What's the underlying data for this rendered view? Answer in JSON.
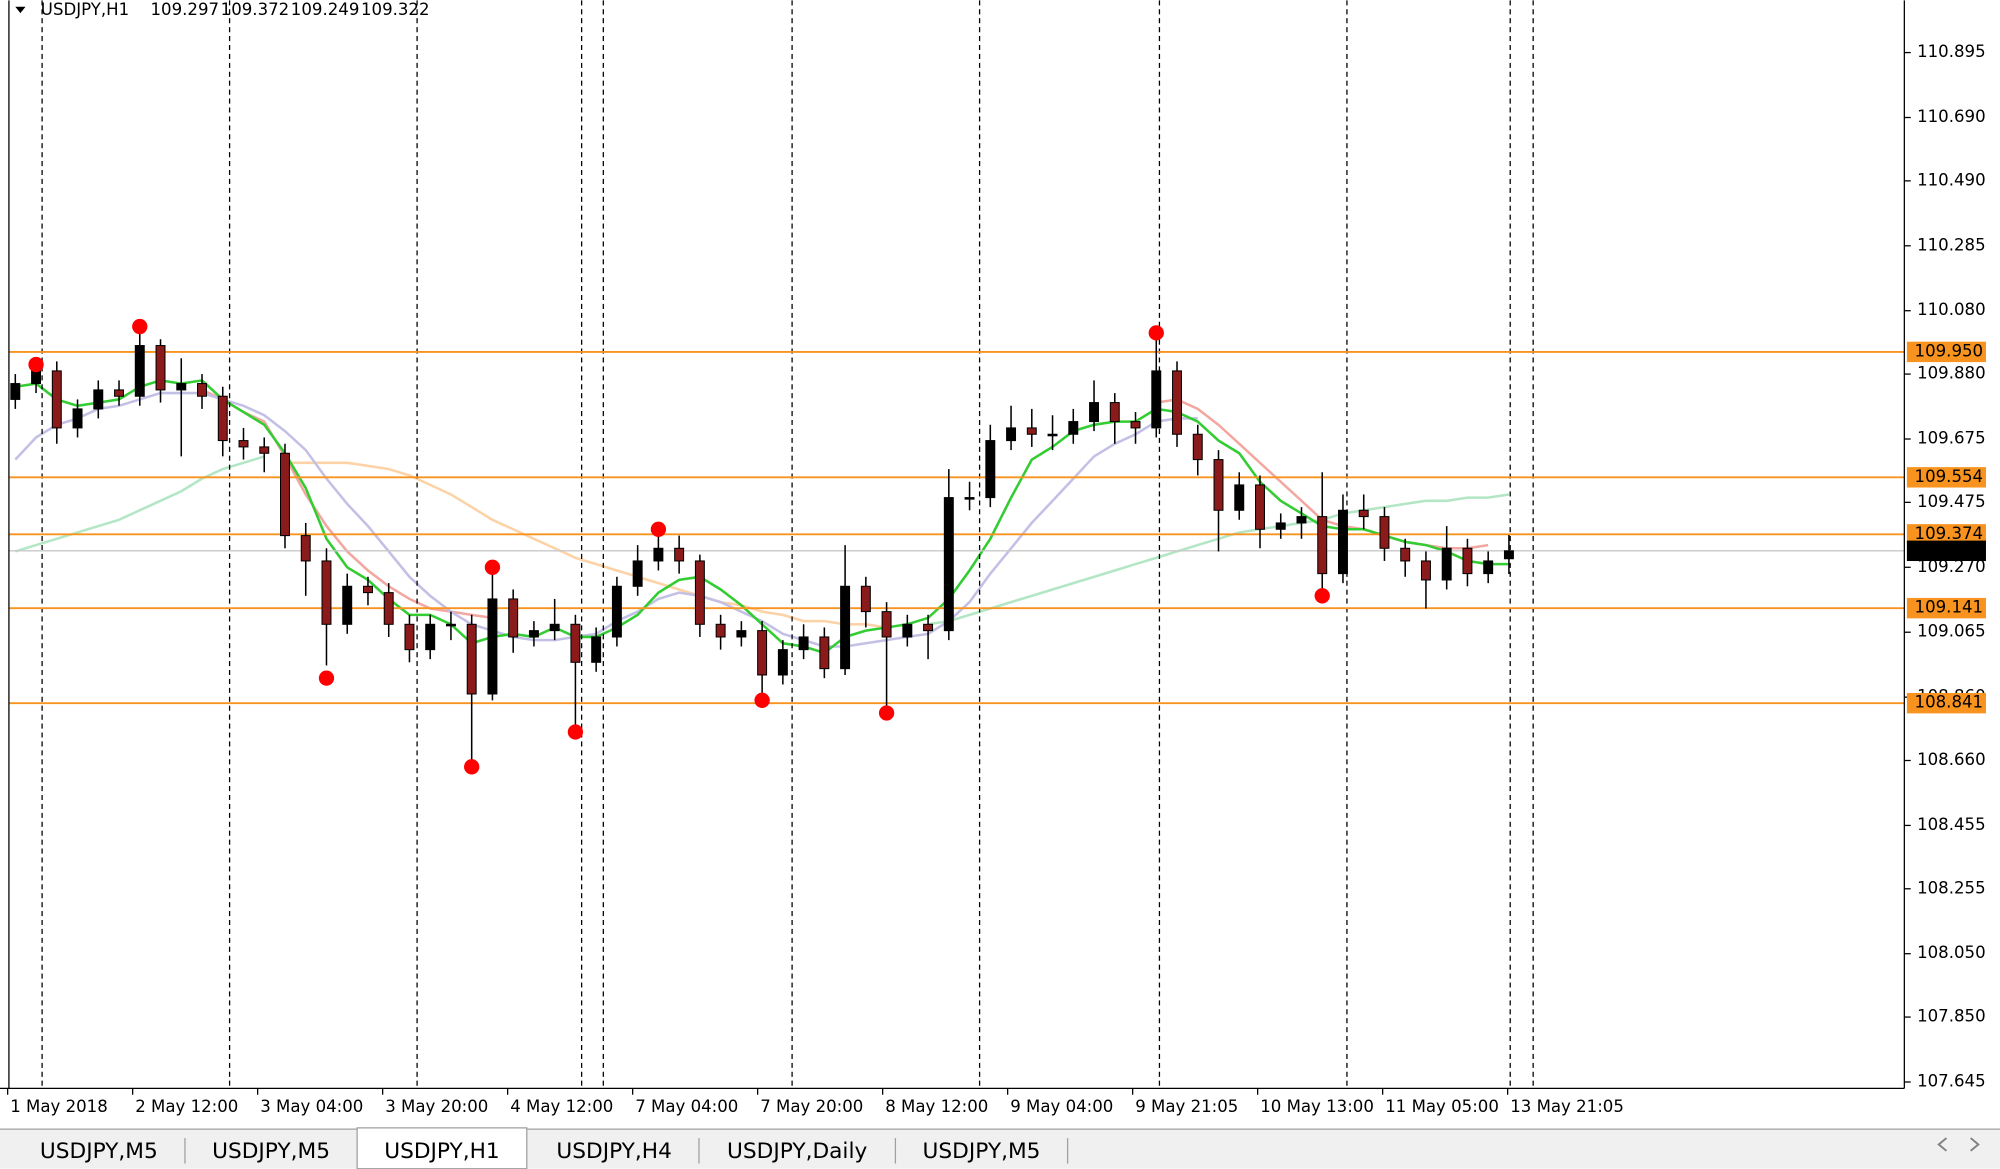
{
  "chart_data": {
    "type": "candlestick",
    "symbol": "USDJPY,H1",
    "bull_color": "#000000",
    "bear_color": "#8b1a1a",
    "candles": [
      [
        109.8,
        109.88,
        109.77,
        109.85
      ],
      [
        109.85,
        109.92,
        109.82,
        109.89
      ],
      [
        109.89,
        109.92,
        109.66,
        109.71
      ],
      [
        109.71,
        109.8,
        109.68,
        109.77
      ],
      [
        109.77,
        109.86,
        109.74,
        109.83
      ],
      [
        109.83,
        109.86,
        109.78,
        109.81
      ],
      [
        109.81,
        110.01,
        109.78,
        109.97
      ],
      [
        109.97,
        109.99,
        109.79,
        109.83
      ],
      [
        109.83,
        109.93,
        109.62,
        109.85
      ],
      [
        109.85,
        109.88,
        109.77,
        109.81
      ],
      [
        109.81,
        109.84,
        109.62,
        109.67
      ],
      [
        109.67,
        109.71,
        109.61,
        109.65
      ],
      [
        109.65,
        109.68,
        109.57,
        109.63
      ],
      [
        109.63,
        109.66,
        109.33,
        109.37
      ],
      [
        109.37,
        109.41,
        109.18,
        109.29
      ],
      [
        109.29,
        109.33,
        108.96,
        109.09
      ],
      [
        109.09,
        109.25,
        109.06,
        109.21
      ],
      [
        109.21,
        109.24,
        109.15,
        109.19
      ],
      [
        109.19,
        109.22,
        109.05,
        109.09
      ],
      [
        109.09,
        109.12,
        108.97,
        109.01
      ],
      [
        109.01,
        109.12,
        108.98,
        109.09
      ],
      [
        109.09,
        109.13,
        109.04,
        109.09
      ],
      [
        109.09,
        109.12,
        108.66,
        108.87
      ],
      [
        108.87,
        109.26,
        108.85,
        109.17
      ],
      [
        109.17,
        109.2,
        109.0,
        109.05
      ],
      [
        109.05,
        109.1,
        109.02,
        109.07
      ],
      [
        109.07,
        109.17,
        109.04,
        109.09
      ],
      [
        109.09,
        109.12,
        108.75,
        108.97
      ],
      [
        108.97,
        109.08,
        108.94,
        109.05
      ],
      [
        109.05,
        109.24,
        109.02,
        109.21
      ],
      [
        109.21,
        109.34,
        109.18,
        109.29
      ],
      [
        109.29,
        109.39,
        109.26,
        109.33
      ],
      [
        109.33,
        109.37,
        109.25,
        109.29
      ],
      [
        109.29,
        109.31,
        109.05,
        109.09
      ],
      [
        109.09,
        109.12,
        109.01,
        109.05
      ],
      [
        109.05,
        109.1,
        109.02,
        109.07
      ],
      [
        109.07,
        109.1,
        108.84,
        108.93
      ],
      [
        108.93,
        109.04,
        108.9,
        109.01
      ],
      [
        109.01,
        109.09,
        108.98,
        109.05
      ],
      [
        109.05,
        109.08,
        108.92,
        108.95
      ],
      [
        108.95,
        109.34,
        108.93,
        109.21
      ],
      [
        109.21,
        109.24,
        109.08,
        109.13
      ],
      [
        109.13,
        109.16,
        108.82,
        109.05
      ],
      [
        109.05,
        109.12,
        109.02,
        109.09
      ],
      [
        109.09,
        109.12,
        108.98,
        109.07
      ],
      [
        109.07,
        109.58,
        109.04,
        109.49
      ],
      [
        109.49,
        109.54,
        109.45,
        109.49
      ],
      [
        109.49,
        109.72,
        109.46,
        109.67
      ],
      [
        109.67,
        109.78,
        109.64,
        109.71
      ],
      [
        109.71,
        109.77,
        109.65,
        109.69
      ],
      [
        109.69,
        109.75,
        109.64,
        109.69
      ],
      [
        109.69,
        109.77,
        109.66,
        109.73
      ],
      [
        109.73,
        109.86,
        109.7,
        109.79
      ],
      [
        109.79,
        109.82,
        109.66,
        109.73
      ],
      [
        109.73,
        109.76,
        109.66,
        109.71
      ],
      [
        109.71,
        109.99,
        109.68,
        109.89
      ],
      [
        109.89,
        109.92,
        109.65,
        109.69
      ],
      [
        109.69,
        109.72,
        109.56,
        109.61
      ],
      [
        109.61,
        109.64,
        109.32,
        109.45
      ],
      [
        109.45,
        109.57,
        109.42,
        109.53
      ],
      [
        109.53,
        109.56,
        109.33,
        109.39
      ],
      [
        109.39,
        109.44,
        109.36,
        109.41
      ],
      [
        109.41,
        109.46,
        109.36,
        109.43
      ],
      [
        109.43,
        109.57,
        109.18,
        109.25
      ],
      [
        109.25,
        109.5,
        109.22,
        109.45
      ],
      [
        109.45,
        109.5,
        109.39,
        109.43
      ],
      [
        109.43,
        109.46,
        109.29,
        109.33
      ],
      [
        109.33,
        109.36,
        109.24,
        109.29
      ],
      [
        109.29,
        109.32,
        109.14,
        109.23
      ],
      [
        109.23,
        109.4,
        109.2,
        109.33
      ],
      [
        109.33,
        109.36,
        109.21,
        109.25
      ],
      [
        109.25,
        109.32,
        109.22,
        109.29
      ],
      [
        109.297,
        109.372,
        109.249,
        109.322
      ]
    ],
    "fractal_color": "#ff0000",
    "fractals": [
      null,
      109.91,
      null,
      null,
      null,
      null,
      110.03,
      null,
      null,
      null,
      null,
      null,
      null,
      null,
      null,
      108.92,
      null,
      null,
      null,
      null,
      null,
      null,
      108.64,
      109.27,
      null,
      null,
      null,
      108.75,
      null,
      null,
      null,
      109.39,
      null,
      null,
      null,
      null,
      108.85,
      null,
      null,
      null,
      null,
      null,
      108.81,
      null,
      null,
      null,
      null,
      null,
      null,
      null,
      null,
      null,
      null,
      null,
      null,
      110.01,
      null,
      null,
      null,
      null,
      null,
      null,
      null,
      109.18,
      null,
      null,
      null,
      null,
      null,
      null,
      null,
      null,
      null
    ],
    "moving_averages": [
      {
        "color": "#b3e6c4",
        "values": [
          109.32,
          109.34,
          109.36,
          109.38,
          109.4,
          109.42,
          109.45,
          109.48,
          109.51,
          109.55,
          109.58,
          109.6,
          109.62,
          null,
          null,
          null,
          null,
          null,
          null,
          null,
          null,
          null,
          null,
          null,
          null,
          null,
          null,
          null,
          null,
          null,
          null,
          null,
          null,
          null,
          null,
          null,
          null,
          null,
          null,
          null,
          null,
          null,
          null,
          null,
          109.09,
          109.1,
          109.12,
          109.14,
          109.16,
          109.18,
          109.2,
          109.22,
          109.24,
          109.26,
          109.28,
          109.3,
          109.32,
          109.34,
          109.36,
          109.38,
          109.39,
          109.4,
          109.41,
          109.42,
          109.44,
          109.45,
          109.46,
          109.47,
          109.48,
          109.48,
          109.49,
          109.49,
          109.5
        ]
      },
      {
        "color": "#fcd2a6",
        "values": [
          null,
          null,
          null,
          null,
          null,
          null,
          null,
          null,
          null,
          null,
          null,
          null,
          null,
          109.6,
          109.6,
          109.6,
          109.6,
          109.59,
          109.58,
          109.56,
          109.53,
          109.5,
          109.46,
          109.42,
          109.39,
          109.36,
          109.33,
          109.3,
          109.28,
          109.26,
          109.24,
          109.22,
          109.2,
          109.18,
          109.16,
          109.15,
          109.13,
          109.12,
          109.1,
          109.1,
          109.09,
          109.09,
          109.08,
          null,
          null,
          null,
          null,
          null,
          null,
          null,
          null,
          null,
          null,
          null,
          null,
          null,
          null,
          null,
          null,
          null,
          null,
          null,
          null,
          null,
          null,
          null,
          null,
          null,
          null,
          null,
          null,
          null,
          null
        ]
      },
      {
        "color": "#f2a8a0",
        "values": [
          null,
          null,
          null,
          null,
          null,
          null,
          null,
          null,
          null,
          109.83,
          109.8,
          109.76,
          109.73,
          109.62,
          109.5,
          109.4,
          109.32,
          109.26,
          109.21,
          109.17,
          109.14,
          109.13,
          109.12,
          109.11,
          null,
          null,
          null,
          null,
          null,
          null,
          null,
          null,
          null,
          null,
          null,
          null,
          null,
          null,
          null,
          null,
          null,
          null,
          null,
          null,
          null,
          null,
          null,
          null,
          null,
          null,
          null,
          null,
          null,
          null,
          null,
          109.79,
          109.8,
          109.77,
          109.72,
          109.66,
          109.6,
          109.54,
          109.48,
          109.42,
          109.4,
          109.39,
          109.37,
          109.35,
          109.34,
          109.33,
          109.33,
          109.34,
          null
        ]
      },
      {
        "color": "#c3c0e6",
        "values": [
          109.61,
          109.68,
          109.72,
          109.74,
          109.77,
          109.78,
          109.8,
          109.82,
          109.82,
          109.82,
          109.8,
          109.78,
          109.75,
          109.7,
          109.64,
          109.55,
          109.47,
          109.4,
          109.32,
          109.24,
          109.18,
          109.13,
          109.09,
          109.07,
          109.05,
          109.04,
          109.04,
          109.05,
          109.06,
          109.1,
          109.13,
          109.17,
          109.19,
          109.18,
          109.16,
          109.13,
          109.1,
          109.06,
          109.04,
          109.02,
          109.02,
          109.03,
          109.04,
          109.05,
          109.06,
          109.1,
          109.16,
          109.25,
          109.33,
          109.41,
          109.48,
          109.55,
          109.62,
          109.66,
          109.69,
          109.73,
          109.74,
          109.74,
          null,
          null,
          null,
          null,
          null,
          null,
          null,
          null,
          null,
          null,
          null,
          null,
          null,
          null,
          null
        ]
      },
      {
        "color": "#33cc33",
        "values": [
          109.84,
          109.85,
          109.8,
          109.78,
          109.79,
          109.8,
          109.84,
          109.86,
          109.85,
          109.86,
          109.8,
          109.76,
          109.72,
          109.63,
          109.52,
          109.36,
          109.27,
          109.23,
          109.17,
          109.12,
          109.12,
          109.09,
          109.03,
          109.05,
          109.06,
          109.05,
          109.08,
          109.05,
          109.05,
          109.08,
          109.12,
          109.19,
          109.23,
          109.24,
          109.2,
          109.15,
          109.09,
          109.03,
          109.02,
          109.0,
          109.05,
          109.07,
          109.08,
          109.09,
          109.11,
          109.17,
          109.26,
          109.36,
          109.49,
          109.61,
          109.65,
          109.7,
          109.72,
          109.73,
          109.73,
          109.77,
          109.76,
          109.73,
          109.67,
          109.63,
          109.54,
          109.48,
          109.44,
          109.4,
          109.39,
          109.39,
          109.37,
          109.35,
          109.34,
          109.32,
          109.29,
          109.28,
          109.28
        ]
      }
    ],
    "level_color": "#f7931e",
    "levels": [
      {
        "value": 109.95,
        "label": "109.950"
      },
      109.554,
      109.374,
      109.141,
      108.841
    ],
    "current_price": 109.322,
    "current_price_color": "#000000",
    "ylim": [
      107.625,
      111.06
    ],
    "yticks": [
      110.895,
      {
        "value": 110.69,
        "label": "110.690"
      },
      {
        "value": 110.49,
        "label": "110.490"
      },
      110.285,
      {
        "value": 110.08,
        "label": "110.080"
      },
      {
        "value": 109.88,
        "label": "109.880"
      },
      109.675,
      109.475,
      {
        "value": 109.27,
        "label": "109.270"
      },
      109.065,
      {
        "value": 108.86,
        "label": "108.860"
      },
      {
        "value": 108.66,
        "label": "108.660"
      },
      108.455,
      108.255,
      {
        "value": 108.05,
        "label": "108.050"
      },
      {
        "value": 107.85,
        "label": "107.850"
      },
      107.645
    ],
    "x_labels": [
      "1 May 2018",
      "2 May 12:00",
      "3 May 04:00",
      "3 May 20:00",
      "4 May 12:00",
      "7 May 04:00",
      "7 May 20:00",
      "8 May 12:00",
      "9 May 04:00",
      "9 May 21:05",
      "10 May 13:00",
      "11 May 05:00",
      "13 May 21:05"
    ]
  },
  "tabs": {
    "items": [
      "USDJPY,M5",
      "USDJPY,M5",
      "USDJPY,H1",
      "USDJPY,H4",
      "USDJPY,Daily",
      "USDJPY,M5"
    ],
    "active": 2
  }
}
